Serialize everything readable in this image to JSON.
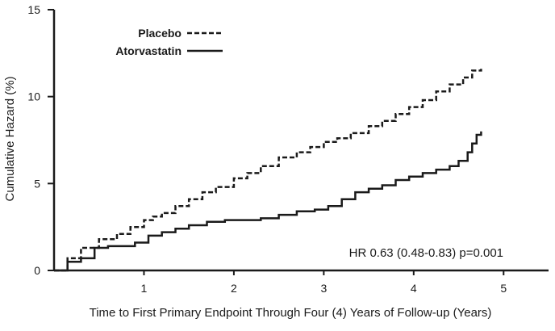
{
  "chart_data": {
    "type": "line",
    "title": "",
    "xlabel": "Time to First Primary Endpoint Through Four (4) Years of Follow-up (Years)",
    "ylabel": "Cumulative Hazard (%)",
    "xlim": [
      0,
      5.5
    ],
    "ylim": [
      0,
      15
    ],
    "xticks": [
      1,
      2,
      3,
      4,
      5
    ],
    "yticks": [
      0,
      5,
      10,
      15
    ],
    "grid": false,
    "legend_position": "top-left",
    "annotation": "HR 0.63 (0.48-0.83) p=0.001",
    "series": [
      {
        "name": "Placebo",
        "style": "dashed",
        "x": [
          0,
          0.15,
          0.3,
          0.5,
          0.7,
          0.85,
          1.0,
          1.1,
          1.2,
          1.35,
          1.5,
          1.65,
          1.8,
          2.0,
          2.15,
          2.3,
          2.5,
          2.7,
          2.85,
          3.0,
          3.15,
          3.3,
          3.5,
          3.65,
          3.8,
          3.95,
          4.1,
          4.25,
          4.4,
          4.55,
          4.65,
          4.75
        ],
        "values": [
          0,
          0.7,
          1.3,
          1.8,
          2.1,
          2.5,
          2.9,
          3.1,
          3.3,
          3.7,
          4.1,
          4.5,
          4.8,
          5.3,
          5.6,
          6.0,
          6.5,
          6.8,
          7.1,
          7.4,
          7.6,
          7.9,
          8.3,
          8.6,
          9.0,
          9.4,
          9.8,
          10.3,
          10.7,
          11.1,
          11.5,
          11.6
        ]
      },
      {
        "name": "Atorvastatin",
        "style": "solid",
        "x": [
          0,
          0.15,
          0.3,
          0.45,
          0.6,
          0.75,
          0.9,
          1.05,
          1.2,
          1.35,
          1.5,
          1.7,
          1.9,
          2.1,
          2.3,
          2.5,
          2.7,
          2.9,
          3.05,
          3.2,
          3.35,
          3.5,
          3.65,
          3.8,
          3.95,
          4.1,
          4.25,
          4.4,
          4.5,
          4.6,
          4.65,
          4.7,
          4.75
        ],
        "values": [
          0,
          0.5,
          0.7,
          1.3,
          1.4,
          1.4,
          1.6,
          2.0,
          2.2,
          2.4,
          2.6,
          2.8,
          2.9,
          2.9,
          3.0,
          3.2,
          3.4,
          3.5,
          3.7,
          4.1,
          4.5,
          4.7,
          4.9,
          5.2,
          5.4,
          5.6,
          5.8,
          6.0,
          6.3,
          6.8,
          7.3,
          7.8,
          8.0
        ]
      }
    ]
  }
}
